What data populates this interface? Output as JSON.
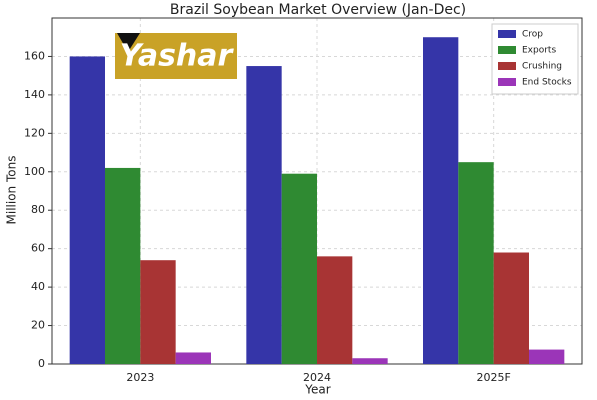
{
  "chart_data": {
    "type": "bar",
    "title": "Brazil Soybean Market Overview (Jan-Dec)",
    "watermark": "Yashar",
    "x_label": "Year",
    "y_label": "Million Tons",
    "categories": [
      "2023",
      "2024",
      "2025F"
    ],
    "series": [
      {
        "name": "Crop",
        "color": "#3535a8",
        "values": [
          160,
          155,
          170
        ]
      },
      {
        "name": "Exports",
        "color": "#2f8a32",
        "values": [
          102,
          99,
          105
        ]
      },
      {
        "name": "Crushing",
        "color": "#a83434",
        "values": [
          54,
          56,
          58
        ]
      },
      {
        "name": "End Stocks",
        "color": "#9b35b8",
        "values": [
          6,
          3,
          7.5
        ]
      }
    ],
    "ylim": [
      0,
      180
    ],
    "yticks": [
      0,
      20,
      40,
      60,
      80,
      100,
      120,
      140,
      160
    ],
    "grid": true,
    "legend": "upper right"
  }
}
